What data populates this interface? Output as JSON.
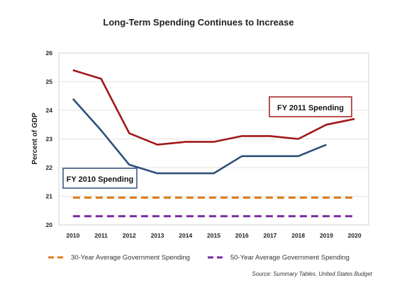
{
  "chart_data": {
    "type": "line",
    "title": "Long-Term Spending Continues to Increase",
    "ylabel": "Percent of GDP",
    "x": [
      "2010",
      "2011",
      "2012",
      "2013",
      "2014",
      "2015",
      "2016",
      "2017",
      "2018",
      "2019",
      "2020"
    ],
    "ylim": [
      20,
      26
    ],
    "yticks": [
      20,
      21,
      22,
      23,
      24,
      25,
      26
    ],
    "grid": "horizontal",
    "series": [
      {
        "name": "FY 2011 Spending",
        "color": "#a01818",
        "style": "solid",
        "values": [
          25.4,
          25.1,
          23.2,
          22.8,
          22.9,
          22.9,
          23.1,
          23.1,
          23.0,
          23.5,
          23.7
        ]
      },
      {
        "name": "FY 2010 Spending",
        "color": "#2e4f7a",
        "style": "solid",
        "values": [
          24.4,
          23.3,
          22.1,
          21.8,
          21.8,
          21.8,
          22.4,
          22.4,
          22.4,
          22.8,
          null
        ]
      },
      {
        "name": "30-Year Average Government Spending",
        "color": "#e07b1a",
        "style": "dashed",
        "values": [
          20.95,
          20.95,
          20.95,
          20.95,
          20.95,
          20.95,
          20.95,
          20.95,
          20.95,
          20.95,
          20.95
        ]
      },
      {
        "name": "50-Year Average Government Spending",
        "color": "#7a2aa0",
        "style": "dashed",
        "values": [
          20.3,
          20.3,
          20.3,
          20.3,
          20.3,
          20.3,
          20.3,
          20.3,
          20.3,
          20.3,
          20.3
        ]
      }
    ],
    "annotations": [
      {
        "text": "FY 2011 Spending",
        "border": "#a01818"
      },
      {
        "text": "FY 2010 Spending",
        "border": "#2e4f7a"
      }
    ],
    "legend": {
      "placement": "bottom",
      "items": [
        "30-Year Average Government Spending",
        "50-Year Average Government Spending"
      ]
    },
    "source": "Source: Summary Tables, United States Budget"
  }
}
